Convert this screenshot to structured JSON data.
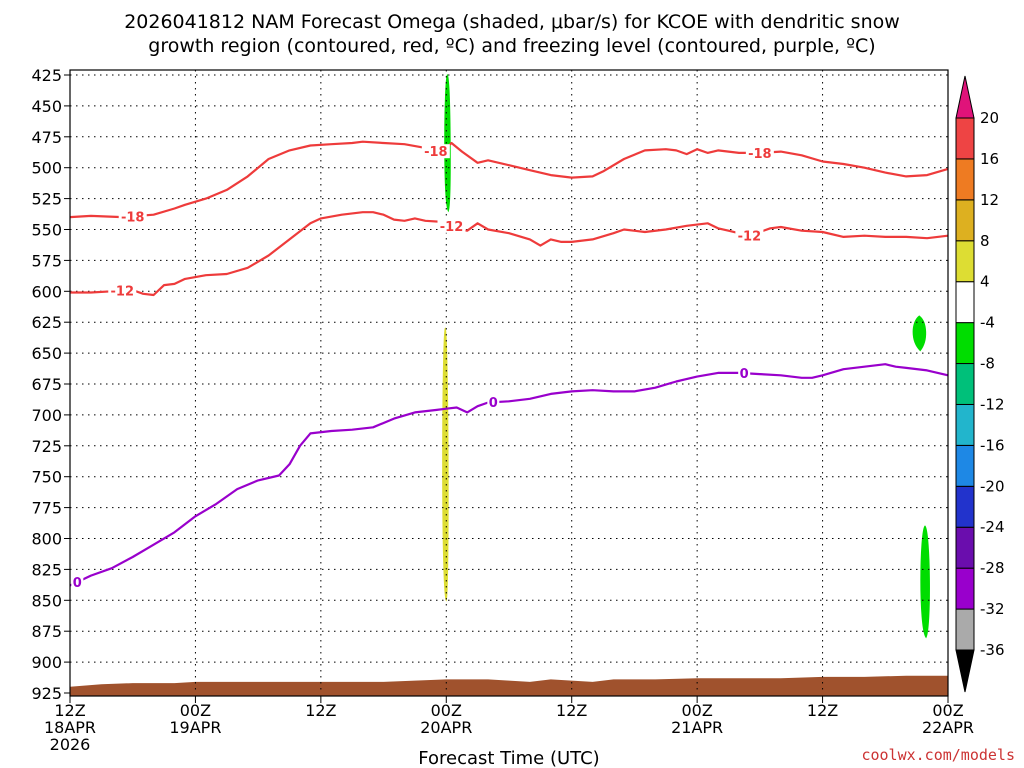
{
  "chart_data": {
    "type": "line",
    "title_line1": "2026041812 NAM Forecast Omega (shaded, μbar/s) for KCOE with dendritic snow",
    "title_line2": "growth region (contoured, red, ºC) and freezing level (contoured, purple, ºC)",
    "xlabel": "Forecast Time (UTC)",
    "credit": "coolwx.com/models",
    "xlim": [
      0,
      84
    ],
    "ylim": [
      925,
      425
    ],
    "y_ticks": [
      425,
      450,
      475,
      500,
      525,
      550,
      575,
      600,
      625,
      650,
      675,
      700,
      725,
      750,
      775,
      800,
      825,
      850,
      875,
      900,
      925
    ],
    "x_ticks": [
      {
        "x": 0,
        "l1": "12Z",
        "l2": "18APR",
        "l3": "2026"
      },
      {
        "x": 12,
        "l1": "00Z",
        "l2": "19APR",
        "l3": ""
      },
      {
        "x": 24,
        "l1": "12Z",
        "l2": "",
        "l3": ""
      },
      {
        "x": 36,
        "l1": "00Z",
        "l2": "20APR",
        "l3": ""
      },
      {
        "x": 48,
        "l1": "12Z",
        "l2": "",
        "l3": ""
      },
      {
        "x": 60,
        "l1": "00Z",
        "l2": "21APR",
        "l3": ""
      },
      {
        "x": 72,
        "l1": "12Z",
        "l2": "",
        "l3": ""
      },
      {
        "x": 84,
        "l1": "00Z",
        "l2": "22APR",
        "l3": ""
      }
    ],
    "series": [
      {
        "name": "-18",
        "color": "#ee3b3b",
        "label_at": [
          6,
          35,
          66
        ],
        "points": [
          [
            0,
            540
          ],
          [
            2,
            539
          ],
          [
            5,
            540
          ],
          [
            8,
            538
          ],
          [
            10,
            533
          ],
          [
            11,
            530
          ],
          [
            13,
            525
          ],
          [
            15,
            518
          ],
          [
            17,
            507
          ],
          [
            19,
            493
          ],
          [
            21,
            486
          ],
          [
            23,
            482
          ],
          [
            25,
            481
          ],
          [
            27,
            480
          ],
          [
            28,
            479
          ],
          [
            30,
            480
          ],
          [
            32,
            481
          ],
          [
            34,
            484
          ],
          [
            35.5,
            488
          ],
          [
            36.5,
            480
          ],
          [
            37.5,
            487
          ],
          [
            39,
            496
          ],
          [
            40,
            494
          ],
          [
            42,
            498
          ],
          [
            44,
            502
          ],
          [
            46,
            506
          ],
          [
            48,
            508
          ],
          [
            50,
            507
          ],
          [
            51,
            503
          ],
          [
            53,
            493
          ],
          [
            55,
            486
          ],
          [
            57,
            485
          ],
          [
            58,
            486
          ],
          [
            59,
            489
          ],
          [
            60,
            485
          ],
          [
            61,
            488
          ],
          [
            62,
            486
          ],
          [
            64,
            488
          ],
          [
            66,
            488
          ],
          [
            68,
            487
          ],
          [
            70,
            490
          ],
          [
            72,
            495
          ],
          [
            74,
            497
          ],
          [
            76,
            500
          ],
          [
            78,
            504
          ],
          [
            80,
            507
          ],
          [
            82,
            506
          ],
          [
            84,
            501
          ]
        ]
      },
      {
        "name": "-12",
        "color": "#ee3b3b",
        "label_at": [
          5,
          36.5,
          65
        ],
        "points": [
          [
            0,
            601
          ],
          [
            2,
            601
          ],
          [
            4,
            600
          ],
          [
            6,
            599
          ],
          [
            7,
            602
          ],
          [
            8,
            603
          ],
          [
            9,
            595
          ],
          [
            10,
            594
          ],
          [
            11,
            590
          ],
          [
            13,
            587
          ],
          [
            15,
            586
          ],
          [
            17,
            581
          ],
          [
            19,
            571
          ],
          [
            21,
            558
          ],
          [
            23,
            545
          ],
          [
            24,
            541
          ],
          [
            26,
            538
          ],
          [
            28,
            536
          ],
          [
            29,
            536
          ],
          [
            30,
            538
          ],
          [
            31,
            542
          ],
          [
            32,
            543
          ],
          [
            33,
            541
          ],
          [
            34,
            543
          ],
          [
            36,
            544
          ],
          [
            37,
            550
          ],
          [
            38,
            551
          ],
          [
            39,
            545
          ],
          [
            40,
            550
          ],
          [
            42,
            553
          ],
          [
            44,
            558
          ],
          [
            45,
            563
          ],
          [
            46,
            558
          ],
          [
            47,
            560
          ],
          [
            48,
            560
          ],
          [
            50,
            558
          ],
          [
            52,
            553
          ],
          [
            53,
            550
          ],
          [
            55,
            552
          ],
          [
            57,
            550
          ],
          [
            59,
            547
          ],
          [
            61,
            545
          ],
          [
            62,
            549
          ],
          [
            63,
            551
          ],
          [
            65,
            555
          ],
          [
            67,
            549
          ],
          [
            68,
            548
          ],
          [
            70,
            551
          ],
          [
            72,
            552
          ],
          [
            74,
            556
          ],
          [
            76,
            555
          ],
          [
            78,
            556
          ],
          [
            80,
            556
          ],
          [
            82,
            557
          ],
          [
            84,
            555
          ]
        ]
      },
      {
        "name": "0",
        "color": "#9900cc",
        "label_at": [
          0.7,
          40.5,
          64.5
        ],
        "points": [
          [
            0,
            838
          ],
          [
            2,
            830
          ],
          [
            4,
            824
          ],
          [
            6,
            815
          ],
          [
            8,
            805
          ],
          [
            10,
            795
          ],
          [
            12,
            782
          ],
          [
            14,
            772
          ],
          [
            16,
            760
          ],
          [
            18,
            753
          ],
          [
            20,
            749
          ],
          [
            21,
            740
          ],
          [
            22,
            725
          ],
          [
            23,
            715
          ],
          [
            25,
            713
          ],
          [
            27,
            712
          ],
          [
            29,
            710
          ],
          [
            31,
            703
          ],
          [
            33,
            698
          ],
          [
            35,
            696
          ],
          [
            36,
            695
          ],
          [
            37,
            694
          ],
          [
            38,
            698
          ],
          [
            39,
            693
          ],
          [
            40,
            690
          ],
          [
            42,
            689
          ],
          [
            44,
            687
          ],
          [
            46,
            683
          ],
          [
            48,
            681
          ],
          [
            50,
            680
          ],
          [
            52,
            681
          ],
          [
            54,
            681
          ],
          [
            56,
            678
          ],
          [
            58,
            673
          ],
          [
            60,
            669
          ],
          [
            62,
            666
          ],
          [
            64,
            666
          ],
          [
            66,
            667
          ],
          [
            68,
            668
          ],
          [
            70,
            670
          ],
          [
            71,
            670
          ],
          [
            72,
            668
          ],
          [
            74,
            663
          ],
          [
            76,
            661
          ],
          [
            78,
            659
          ],
          [
            79,
            661
          ],
          [
            80,
            662
          ],
          [
            82,
            664
          ],
          [
            84,
            668
          ]
        ]
      }
    ],
    "omega_shading": [
      {
        "color": "#00dd00",
        "bin": "-8 to -4",
        "xmin": 35.8,
        "xmax": 36.4,
        "p_top": 425,
        "p_bottom": 535
      },
      {
        "color": "#dddd33",
        "bin": "4 to 8",
        "xmin": 35.6,
        "xmax": 36.2,
        "p_top": 630,
        "p_bottom": 850
      },
      {
        "color": "#00dd00",
        "bin": "-8 to -4",
        "xmin": 80.5,
        "xmax": 82.0,
        "p_top": 620,
        "p_bottom": 648
      },
      {
        "color": "#00dd00",
        "bin": "-8 to -4",
        "xmin": 81.3,
        "xmax": 82.3,
        "p_top": 790,
        "p_bottom": 880
      }
    ],
    "terrain": {
      "color": "#a0522d",
      "points": [
        [
          0,
          920
        ],
        [
          3,
          918
        ],
        [
          6,
          917
        ],
        [
          10,
          917
        ],
        [
          12,
          916
        ],
        [
          18,
          916
        ],
        [
          24,
          916
        ],
        [
          30,
          916
        ],
        [
          33,
          915
        ],
        [
          36,
          914
        ],
        [
          40,
          914
        ],
        [
          42,
          915
        ],
        [
          44,
          916
        ],
        [
          46,
          914
        ],
        [
          48,
          915
        ],
        [
          50,
          916
        ],
        [
          52,
          914
        ],
        [
          56,
          914
        ],
        [
          60,
          913
        ],
        [
          64,
          913
        ],
        [
          68,
          913
        ],
        [
          72,
          912
        ],
        [
          76,
          912
        ],
        [
          80,
          911
        ],
        [
          84,
          911
        ]
      ]
    },
    "colorbar": {
      "bins": [
        {
          "color": "#aaaaaa"
        },
        {
          "color": "#9900cc"
        },
        {
          "color": "#6a0dad"
        },
        {
          "color": "#2233cc"
        },
        {
          "color": "#1e88e5"
        },
        {
          "color": "#22b5cc"
        },
        {
          "color": "#00c07a"
        },
        {
          "color": "#00dd00"
        },
        {
          "color": "#ffffff"
        },
        {
          "color": "#dddd33"
        },
        {
          "color": "#ddb020"
        },
        {
          "color": "#ee7b22"
        },
        {
          "color": "#ee4444"
        }
      ],
      "bottom_arrow_color": "#000000",
      "top_arrow_color": "#e0137a",
      "labels": [
        "-36",
        "-32",
        "-28",
        "-24",
        "-20",
        "-16",
        "-12",
        "-8",
        "-4",
        "4",
        "8",
        "12",
        "16",
        "20"
      ]
    }
  }
}
